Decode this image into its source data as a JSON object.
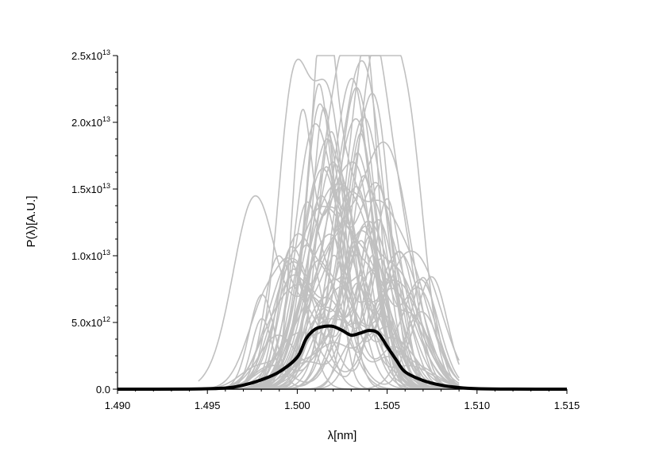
{
  "chart_data": {
    "type": "line",
    "xlabel": "λ[nm]",
    "ylabel": "P(λ)[A.U.]",
    "xlim": [
      1.49,
      1.515
    ],
    "ylim": [
      0,
      25000000000000.0
    ],
    "x_ticks": [
      1.49,
      1.495,
      1.5,
      1.505,
      1.51,
      1.515
    ],
    "x_tick_labels": [
      "1.490",
      "1.495",
      "1.500",
      "1.505",
      "1.510",
      "1.515"
    ],
    "y_ticks": [
      0,
      5000000000000.0,
      10000000000000.0,
      15000000000000.0,
      20000000000000.0,
      25000000000000.0
    ],
    "y_tick_labels": [
      {
        "mantissa": "0.0",
        "exponent": ""
      },
      {
        "mantissa": "5.0x10",
        "exponent": "12"
      },
      {
        "mantissa": "1.0x10",
        "exponent": "13"
      },
      {
        "mantissa": "1.5x10",
        "exponent": "13"
      },
      {
        "mantissa": "2.0x10",
        "exponent": "13"
      },
      {
        "mantissa": "2.5x10",
        "exponent": "13"
      }
    ],
    "grid": false,
    "series": [
      {
        "color": "#000000",
        "x": [
          1.49,
          1.494,
          1.496,
          1.497,
          1.498,
          1.499,
          1.5,
          1.5005,
          1.501,
          1.5015,
          1.502,
          1.5025,
          1.503,
          1.5035,
          1.504,
          1.5045,
          1.505,
          1.5055,
          1.506,
          1.507,
          1.508,
          1.509,
          1.51,
          1.512,
          1.515
        ],
        "y": [
          0,
          10000000000.0,
          80000000000.0,
          300000000000.0,
          700000000000.0,
          1300000000000.0,
          2400000000000.0,
          3800000000000.0,
          4500000000000.0,
          4700000000000.0,
          4700000000000.0,
          4400000000000.0,
          4050000000000.0,
          4200000000000.0,
          4400000000000.0,
          4200000000000.0,
          3200000000000.0,
          2200000000000.0,
          1300000000000.0,
          650000000000.0,
          300000000000.0,
          120000000000.0,
          40000000000.0,
          5000000000.0,
          0
        ]
      }
    ],
    "background_realizations": {
      "count": 60,
      "color": "#c0c0c0",
      "peaks": [
        {
          "x": 1.5015,
          "y": 21100000000000.0
        },
        {
          "x": 1.5033,
          "y": 22600000000000.0
        },
        {
          "x": 1.5019,
          "y": 19300000000000.0
        },
        {
          "x": 1.5037,
          "y": 16000000000000.0
        },
        {
          "x": 1.5045,
          "y": 12700000000000.0
        },
        {
          "x": 1.5005,
          "y": 10800000000000.0
        },
        {
          "x": 1.4998,
          "y": 9000000000000.0
        },
        {
          "x": 1.5069,
          "y": 5800000000000.0
        }
      ]
    }
  }
}
